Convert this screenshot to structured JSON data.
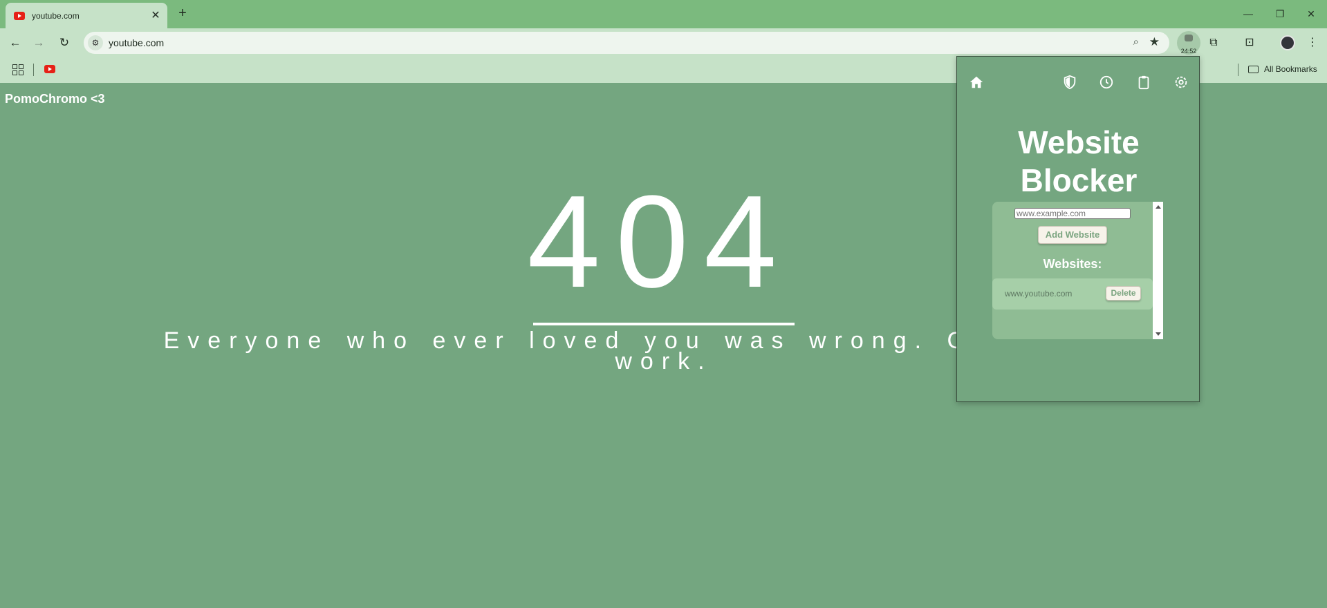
{
  "browser": {
    "tab_title": "youtube.com",
    "url": "youtube.com",
    "extension_badge": "24:52",
    "bookmarks_label": "All Bookmarks"
  },
  "page": {
    "brand": "PomoChromo <3",
    "code": "404",
    "message": "Everyone who ever loved you was wrong. Get back to work."
  },
  "popup": {
    "title_line1": "Website",
    "title_line2": "Blocker",
    "input_placeholder": "www.example.com",
    "add_button": "Add Website",
    "websites_heading": "Websites:",
    "sites": [
      {
        "name": "www.youtube.com",
        "delete_label": "Delete"
      }
    ],
    "nav_icons": [
      "home-icon",
      "shield-icon",
      "clock-icon",
      "clipboard-icon",
      "settings-icon"
    ]
  },
  "colors": {
    "page_bg": "#74a680",
    "chrome_tabstrip": "#7bba7e",
    "chrome_toolbar": "#c6e2c8",
    "text": "#ffffff"
  }
}
